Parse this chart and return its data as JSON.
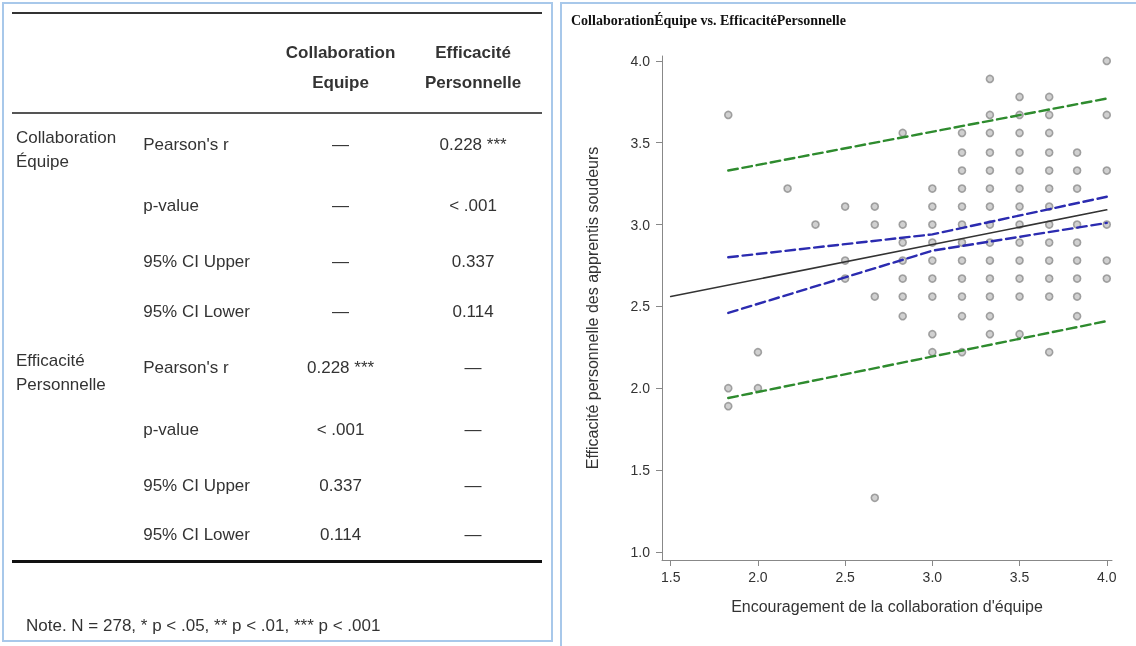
{
  "chart_data": [
    {
      "type": "other",
      "categories": [
        null,
        null,
        "Collaboration Equipe",
        "Efficacité Personnelle"
      ],
      "cell_labels": [
        [
          "Collaboration Équipe",
          "Pearson's r",
          "—",
          "0.228 ***"
        ],
        [
          null,
          "p-value",
          "—",
          "< .001"
        ],
        [
          null,
          "95% CI Upper",
          "—",
          "0.337"
        ],
        [
          null,
          "95% CI Lower",
          "—",
          "0.114"
        ],
        [
          "Efficacité Personnelle",
          "Pearson's r",
          "0.228 ***",
          "—"
        ],
        [
          null,
          "p-value",
          "< .001",
          "—"
        ],
        [
          null,
          "95% CI Upper",
          "0.337",
          "—"
        ],
        [
          null,
          "95% CI Lower",
          "0.114",
          "—"
        ]
      ],
      "annotations": [
        "Note. N = 278, * p < .05, ** p < .01, *** p < .001"
      ]
    },
    {
      "type": "scatter",
      "title": "CollaborationÉquipe vs. EfficacitéPersonnelle",
      "xlabel": "Encouragement de la collaboration d'équipe",
      "ylabel": "Efficacité personnelle des apprentis soudeurs",
      "xlim": [
        1.45,
        4.03
      ],
      "ylim": [
        0.95,
        4.03
      ],
      "xticks": [
        {
          "value": 1.5,
          "label": "1.5"
        },
        {
          "value": 2,
          "label": "2.0"
        },
        {
          "value": 2.5,
          "label": "2.5"
        },
        {
          "value": 3,
          "label": "3.0"
        },
        {
          "value": 3.5,
          "label": "3.5"
        },
        {
          "value": 4,
          "label": "4.0"
        }
      ],
      "yticks": [
        {
          "value": 1,
          "label": "1.0"
        },
        {
          "value": 1.5,
          "label": "1.5"
        },
        {
          "value": 2,
          "label": "2.0"
        },
        {
          "value": 2.5,
          "label": "2.5"
        },
        {
          "value": 3,
          "label": "3.0"
        },
        {
          "value": 3.5,
          "label": "3.5"
        },
        {
          "value": 4,
          "label": "4.0"
        }
      ],
      "grid": false,
      "series": [
        {
          "type": "scatter",
          "marker": "circle",
          "color": "#8c8c8c",
          "x": [
            1.83,
            2.17,
            2.5,
            2.67,
            2.33,
            2.67,
            2.5,
            2.5,
            2.67,
            2.0,
            1.83,
            2.0,
            1.83,
            2.67,
            4.0,
            3.33,
            3.5,
            3.67,
            3.33,
            3.5,
            3.67,
            4.0,
            2.83,
            3.17,
            3.33,
            3.5,
            3.67,
            3.17,
            3.33,
            3.5,
            3.67,
            3.83,
            3.17,
            3.33,
            3.5,
            3.67,
            3.83,
            4.0,
            3.0,
            3.17,
            3.33,
            3.5,
            3.67,
            3.83,
            3.0,
            3.17,
            3.33,
            3.5,
            3.67,
            2.83,
            3.0,
            3.17,
            3.33,
            3.5,
            3.67,
            3.83,
            4.0,
            2.83,
            3.0,
            3.17,
            3.33,
            3.5,
            3.67,
            3.83,
            2.83,
            3.0,
            3.17,
            3.33,
            3.5,
            3.67,
            3.83,
            4.0,
            2.83,
            3.0,
            3.17,
            3.33,
            3.5,
            3.67,
            3.83,
            4.0,
            2.83,
            3.0,
            3.17,
            3.33,
            3.5,
            3.67,
            3.83,
            2.83,
            3.17,
            3.33,
            3.83,
            3.0,
            3.33,
            3.5,
            3.0,
            3.17,
            3.67
          ],
          "values": [
            3.67,
            3.22,
            3.11,
            3.11,
            3.0,
            3.0,
            2.78,
            2.67,
            2.56,
            2.22,
            2.0,
            2.0,
            1.89,
            1.33,
            4.0,
            3.89,
            3.78,
            3.78,
            3.67,
            3.67,
            3.67,
            3.67,
            3.56,
            3.56,
            3.56,
            3.56,
            3.56,
            3.44,
            3.44,
            3.44,
            3.44,
            3.44,
            3.33,
            3.33,
            3.33,
            3.33,
            3.33,
            3.33,
            3.22,
            3.22,
            3.22,
            3.22,
            3.22,
            3.22,
            3.11,
            3.11,
            3.11,
            3.11,
            3.11,
            3.0,
            3.0,
            3.0,
            3.0,
            3.0,
            3.0,
            3.0,
            3.0,
            2.89,
            2.89,
            2.89,
            2.89,
            2.89,
            2.89,
            2.89,
            2.78,
            2.78,
            2.78,
            2.78,
            2.78,
            2.78,
            2.78,
            2.78,
            2.67,
            2.67,
            2.67,
            2.67,
            2.67,
            2.67,
            2.67,
            2.67,
            2.56,
            2.56,
            2.56,
            2.56,
            2.56,
            2.56,
            2.56,
            2.44,
            2.44,
            2.44,
            2.44,
            2.33,
            2.33,
            2.33,
            2.22,
            2.22,
            2.22
          ]
        },
        {
          "type": "line",
          "marker": "none",
          "line_style": "solid",
          "color": "#333333",
          "x": [
            1.5,
            4.0
          ],
          "values": [
            2.56,
            3.09
          ]
        },
        {
          "type": "line",
          "marker": "none",
          "line_style": "dashed",
          "color": "#2b2bb0",
          "x": [
            1.83,
            3.0,
            4.0
          ],
          "values": [
            2.8,
            2.94,
            3.17
          ]
        },
        {
          "type": "line",
          "marker": "none",
          "line_style": "dashed",
          "color": "#2b2bb0",
          "x": [
            1.83,
            3.0,
            4.0
          ],
          "values": [
            2.46,
            2.84,
            3.01
          ]
        },
        {
          "type": "line",
          "marker": "none",
          "line_style": "dashed",
          "color": "#2e8b2e",
          "x": [
            1.83,
            4.0
          ],
          "values": [
            3.33,
            3.77
          ]
        },
        {
          "type": "line",
          "marker": "none",
          "line_style": "dashed",
          "color": "#2e8b2e",
          "x": [
            1.83,
            4.0
          ],
          "values": [
            1.94,
            2.41
          ]
        }
      ]
    }
  ]
}
